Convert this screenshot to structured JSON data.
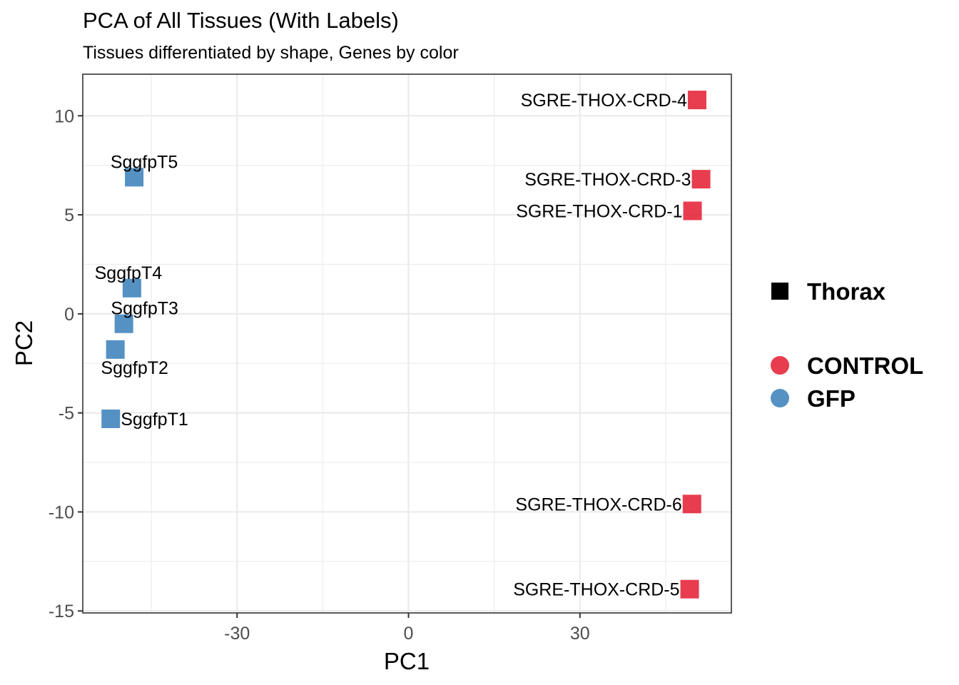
{
  "chart_data": {
    "type": "scatter",
    "title": "PCA of All Tissues (With Labels)",
    "subtitle": "Tissues differentiated by shape, Genes by color",
    "xlabel": "PC1",
    "ylabel": "PC2",
    "xlim": [
      -57,
      56.5
    ],
    "ylim": [
      -15.1,
      12.1
    ],
    "x_ticks": [
      -30,
      0,
      30
    ],
    "x_tick_labels": [
      "-30",
      "0",
      "30"
    ],
    "y_ticks": [
      -15,
      -10,
      -5,
      0,
      5,
      10
    ],
    "y_tick_labels": [
      "-15",
      "-10",
      "-5",
      "0",
      "5",
      "10"
    ],
    "grid": true,
    "legend_position": "right",
    "shape_legend": [
      {
        "label": "Thorax",
        "shape": "square"
      }
    ],
    "color_legend": [
      {
        "label": "CONTROL",
        "color": "#e41a30"
      },
      {
        "label": "GFP",
        "color": "#377eb8"
      }
    ],
    "series": [
      {
        "name": "CONTROL",
        "color": "#e41a30",
        "shape": "square",
        "points": [
          {
            "label": "SGRE-THOX-CRD-4",
            "x": 50.5,
            "y": 10.8,
            "label_side": "left"
          },
          {
            "label": "SGRE-THOX-CRD-3",
            "x": 51.2,
            "y": 6.8,
            "label_side": "left"
          },
          {
            "label": "SGRE-THOX-CRD-1",
            "x": 49.7,
            "y": 5.2,
            "label_side": "left"
          },
          {
            "label": "SGRE-THOX-CRD-6",
            "x": 49.6,
            "y": -9.6,
            "label_side": "left"
          },
          {
            "label": "SGRE-THOX-CRD-5",
            "x": 49.2,
            "y": -13.9,
            "label_side": "left"
          }
        ]
      },
      {
        "name": "GFP",
        "color": "#377eb8",
        "shape": "square",
        "points": [
          {
            "label": "SggfpT5",
            "x": -48.0,
            "y": 6.9,
            "label_side": "above"
          },
          {
            "label": "SggfpT4",
            "x": -48.4,
            "y": 1.3,
            "label_side": "above-left"
          },
          {
            "label": "SggfpT3",
            "x": -49.8,
            "y": -0.5,
            "label_side": "above-right"
          },
          {
            "label": "SggfpT2",
            "x": -51.3,
            "y": -1.8,
            "label_side": "below"
          },
          {
            "label": "SggfpT1",
            "x": -52.1,
            "y": -5.3,
            "label_side": "right"
          }
        ]
      }
    ]
  }
}
